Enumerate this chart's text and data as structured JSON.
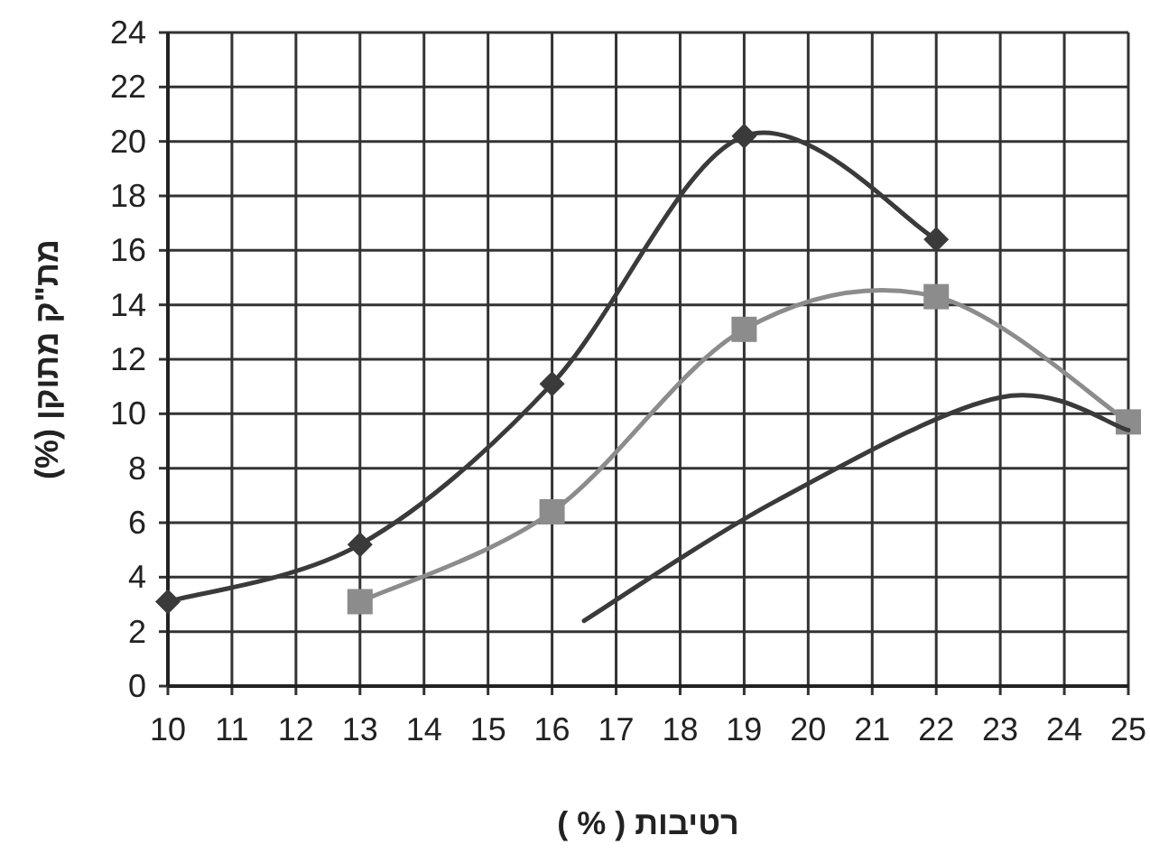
{
  "chart_data": {
    "type": "line",
    "xlabel": "רטיבות ( % )",
    "ylabel": "מת\"ק מתוקן (%)",
    "xlim": [
      10,
      25
    ],
    "xticks": [
      10,
      11,
      12,
      13,
      14,
      15,
      16,
      17,
      18,
      19,
      20,
      21,
      22,
      23,
      24,
      25
    ],
    "ylim": [
      0,
      24
    ],
    "yticks": [
      0,
      2,
      4,
      6,
      8,
      10,
      12,
      14,
      16,
      18,
      20,
      22,
      24
    ],
    "grid": true,
    "series": [
      {
        "color": "#3a3a3a",
        "marker": "diamond",
        "x": [
          10,
          13,
          16,
          19,
          22
        ],
        "values": [
          3.1,
          5.2,
          11.1,
          20.2,
          16.4
        ]
      },
      {
        "color": "#8c8c8c",
        "marker": "square",
        "x": [
          13,
          16,
          19,
          22,
          25
        ],
        "values": [
          3.1,
          6.4,
          13.1,
          14.3,
          9.7
        ]
      },
      {
        "color": "#3a3a3a",
        "marker": "none",
        "x": [
          16.5,
          19.5,
          23,
          25
        ],
        "values": [
          2.4,
          6.8,
          10.6,
          9.4
        ]
      }
    ]
  }
}
